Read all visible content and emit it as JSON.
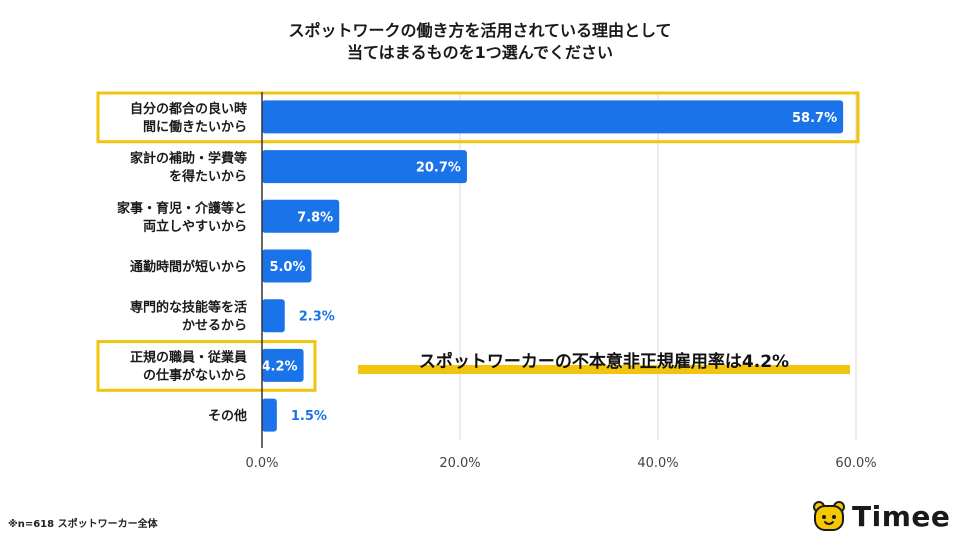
{
  "title_lines": [
    "スポットワークの働き方を活用されている理由として",
    "当てはまるものを1つ選んでください"
  ],
  "chart_data": {
    "type": "bar",
    "orientation": "horizontal",
    "categories": [
      [
        "自分の都合の良い時",
        "間に働きたいから"
      ],
      [
        "家計の補助・学費等",
        "を得たいから"
      ],
      [
        "家事・育児・介護等と",
        "両立しやすいから"
      ],
      [
        "通勤時間が短いから"
      ],
      [
        "専門的な技能等を活",
        "かせるから"
      ],
      [
        "正規の職員・従業員",
        "の仕事がないから"
      ],
      [
        "その他"
      ]
    ],
    "values": [
      58.7,
      20.7,
      7.8,
      5.0,
      2.3,
      4.2,
      1.5
    ],
    "value_labels": [
      "58.7%",
      "20.7%",
      "7.8%",
      "5.0%",
      "2.3%",
      "4.2%",
      "1.5%"
    ],
    "xlim": [
      0,
      60
    ],
    "x_ticks": [
      0,
      20,
      40,
      60
    ],
    "x_tick_labels": [
      "0.0%",
      "20.0%",
      "40.0%",
      "60.0%"
    ],
    "grid": true,
    "bar_color": "#1a73e8",
    "highlighted_categories": [
      0,
      5
    ],
    "highlight_color": "#f2c40d"
  },
  "callout_text": "スポットワーカーの不本意非正規雇用率は4.2%",
  "footnote": "※n=618 スポットワーカー全体",
  "logo": {
    "text": "Timee",
    "icon": "bear-face-icon",
    "icon_color": "#f6c800"
  }
}
